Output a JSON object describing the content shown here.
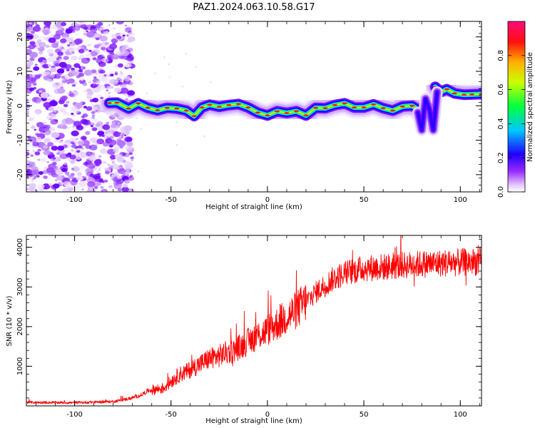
{
  "title": "PAZ1.2024.063.10.58.G17",
  "chart_data": [
    {
      "type": "heatmap",
      "xlabel": "Height of straight line (km)",
      "ylabel": "Frequency (Hz)",
      "xlim": [
        -125,
        111
      ],
      "ylim": [
        -25,
        24.5
      ],
      "xticks": [
        -100,
        -50,
        0,
        50,
        100
      ],
      "yticks": [
        -20,
        -10,
        0,
        10,
        20
      ],
      "colorbar": {
        "label": "Normalized spectral amplitude",
        "range": [
          0,
          1
        ],
        "ticks": [
          "0.0",
          "0.2",
          "0.4",
          "0.6",
          "0.8"
        ],
        "colors": [
          "#ffffff",
          "#d9b3ff",
          "#8000ff",
          "#0000ff",
          "#00ffff",
          "#00ff00",
          "#ffff00",
          "#ff8000",
          "#ff0000",
          "#ff0080"
        ]
      },
      "ridge": {
        "x": [
          -82,
          -78,
          -72,
          -67,
          -62,
          -57,
          -52,
          -47,
          -42,
          -38,
          -34,
          -30,
          -25,
          -20,
          -15,
          -10,
          -5,
          0,
          5,
          10,
          15,
          20,
          25,
          30,
          35,
          40,
          45,
          50,
          55,
          60,
          65,
          70,
          75,
          78
        ],
        "y": [
          0.8,
          0.9,
          -0.8,
          0.7,
          -0.6,
          -1.3,
          -0.6,
          -0.8,
          -1.4,
          -3.0,
          -0.5,
          0.3,
          -0.3,
          0.2,
          0.5,
          -0.5,
          -2.0,
          -2.8,
          -1.6,
          -2.1,
          -1.6,
          -2.8,
          -0.6,
          -0.7,
          0.2,
          0.7,
          -0.5,
          -0.5,
          0.4,
          -0.7,
          -1.4,
          -0.2,
          0.0,
          -1.0
        ]
      },
      "ridge2": {
        "x": [
          78,
          80,
          82,
          84,
          86,
          88
        ],
        "y": [
          -2,
          -7,
          2,
          -1,
          -7,
          4
        ]
      },
      "ridge3": {
        "x": [
          87,
          90,
          93,
          97,
          102,
          106,
          111
        ],
        "y": [
          5.5,
          4.0,
          4.8,
          3.6,
          3.2,
          3.3,
          3.4
        ]
      }
    },
    {
      "type": "line",
      "xlabel": "Height of straight line (km)",
      "ylabel": "SNR (10 * v/v)",
      "xlim": [
        -125,
        111
      ],
      "ylim": [
        0,
        4300
      ],
      "xticks": [
        -100,
        -50,
        0,
        50,
        100
      ],
      "yticks": [
        1000,
        2000,
        3000,
        4000
      ],
      "color": "#ff0000",
      "series": [
        {
          "x": [
            -125,
            -100,
            -80,
            -72,
            -66,
            -62,
            -58,
            -54,
            -50,
            -46,
            -42,
            -38,
            -34,
            -30,
            -26,
            -22,
            -18,
            -14,
            -10,
            -6,
            -2,
            2,
            6,
            10,
            14,
            18,
            22,
            26,
            30,
            34,
            38,
            42,
            46,
            50,
            60,
            70,
            80,
            90,
            100,
            111
          ],
          "y": [
            90,
            80,
            110,
            180,
            260,
            380,
            420,
            440,
            620,
            780,
            860,
            980,
            1080,
            1200,
            1240,
            1330,
            1380,
            1500,
            1620,
            1750,
            1850,
            1980,
            2100,
            2250,
            2380,
            2550,
            2720,
            2900,
            3050,
            3200,
            3300,
            3380,
            3420,
            3470,
            3500,
            3540,
            3580,
            3600,
            3620,
            3640
          ]
        }
      ]
    }
  ]
}
